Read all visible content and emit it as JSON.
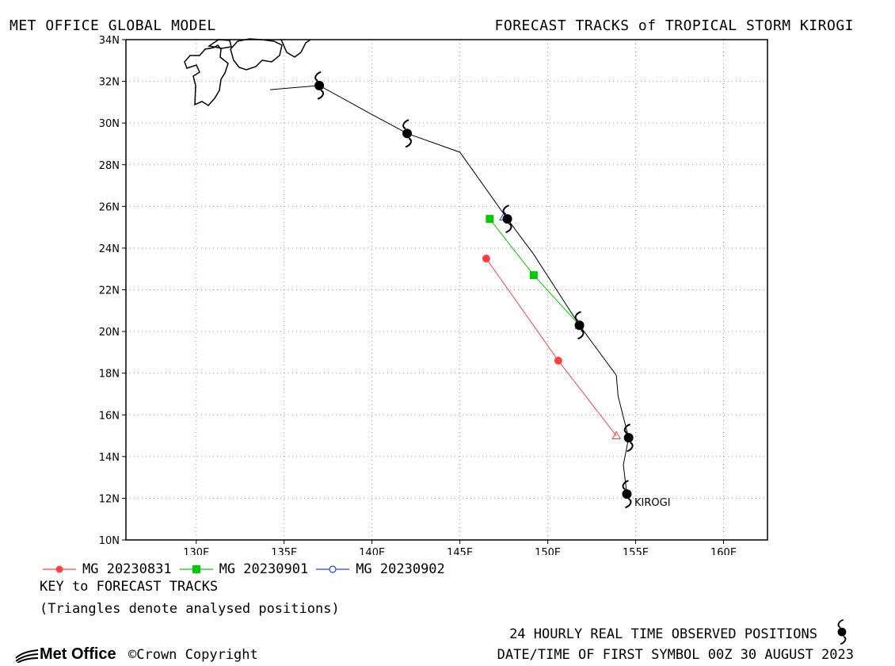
{
  "header": {
    "left": "MET OFFICE GLOBAL MODEL",
    "right": "FORECAST TRACKS of TROPICAL STORM KIROGI"
  },
  "map": {
    "lon_range": [
      126,
      162.5
    ],
    "lat_range": [
      10,
      34
    ],
    "lon_ticks": [
      130,
      135,
      140,
      145,
      150,
      155,
      160
    ],
    "lon_tick_labels": [
      "130E",
      "135E",
      "140E",
      "145E",
      "150E",
      "155E",
      "160E"
    ],
    "lat_ticks": [
      10,
      12,
      14,
      16,
      18,
      20,
      22,
      24,
      26,
      28,
      30,
      32,
      34
    ],
    "lat_tick_labels": [
      "10N",
      "12N",
      "14N",
      "16N",
      "18N",
      "20N",
      "22N",
      "24N",
      "26N",
      "28N",
      "30N",
      "32N",
      "34N"
    ],
    "grid": "dotted",
    "storm_label": "KIROGI"
  },
  "chart_data": {
    "type": "scatter",
    "observed_positions": [
      {
        "lon": 154.5,
        "lat": 12.2
      },
      {
        "lon": 154.6,
        "lat": 14.9
      },
      {
        "lon": 151.8,
        "lat": 20.3
      },
      {
        "lon": 147.7,
        "lat": 25.4
      },
      {
        "lon": 142.0,
        "lat": 29.5
      },
      {
        "lon": 137.0,
        "lat": 31.8
      }
    ],
    "observed_track": [
      [
        154.5,
        12.2
      ],
      [
        154.3,
        13.6
      ],
      [
        154.6,
        14.9
      ],
      [
        154.0,
        16.9
      ],
      [
        153.9,
        17.9
      ],
      [
        151.8,
        20.3
      ],
      [
        149.2,
        23.7
      ],
      [
        147.7,
        25.4
      ],
      [
        145.0,
        28.6
      ],
      [
        142.0,
        29.5
      ],
      [
        139.8,
        30.5
      ],
      [
        137.0,
        31.8
      ],
      [
        134.2,
        31.6
      ]
    ],
    "series": [
      {
        "name": "MG 20230831",
        "color": "#ff4040",
        "marker": "circle-filled",
        "points": [
          [
            153.9,
            15.0
          ],
          [
            150.6,
            18.6
          ],
          [
            146.5,
            23.5
          ]
        ]
      },
      {
        "name": "MG 20230901",
        "color": "#00cc00",
        "marker": "square-filled",
        "points": [
          [
            151.8,
            20.3
          ],
          [
            149.2,
            22.7
          ],
          [
            146.7,
            25.4
          ]
        ]
      },
      {
        "name": "MG 20230902",
        "color": "#2040ff",
        "marker": "circle-open",
        "points": [
          [
            147.5,
            25.5
          ]
        ]
      }
    ]
  },
  "legend": {
    "items": [
      {
        "label": "MG 20230831",
        "color": "#ff4040",
        "marker": "circle-filled"
      },
      {
        "label": "MG 20230901",
        "color": "#00cc00",
        "marker": "square-filled"
      },
      {
        "label": "MG 20230902",
        "color": "#2040ff",
        "marker": "circle-open"
      }
    ],
    "key_title": "KEY to FORECAST TRACKS",
    "key_note": "(Triangles denote analysed positions)"
  },
  "footer": {
    "logo_text": "Met Office",
    "copyright": "©Crown Copyright",
    "observed_note": "24 HOURLY REAL TIME OBSERVED POSITIONS",
    "first_symbol": "DATE/TIME OF FIRST SYMBOL 00Z 30 AUGUST 2023"
  }
}
